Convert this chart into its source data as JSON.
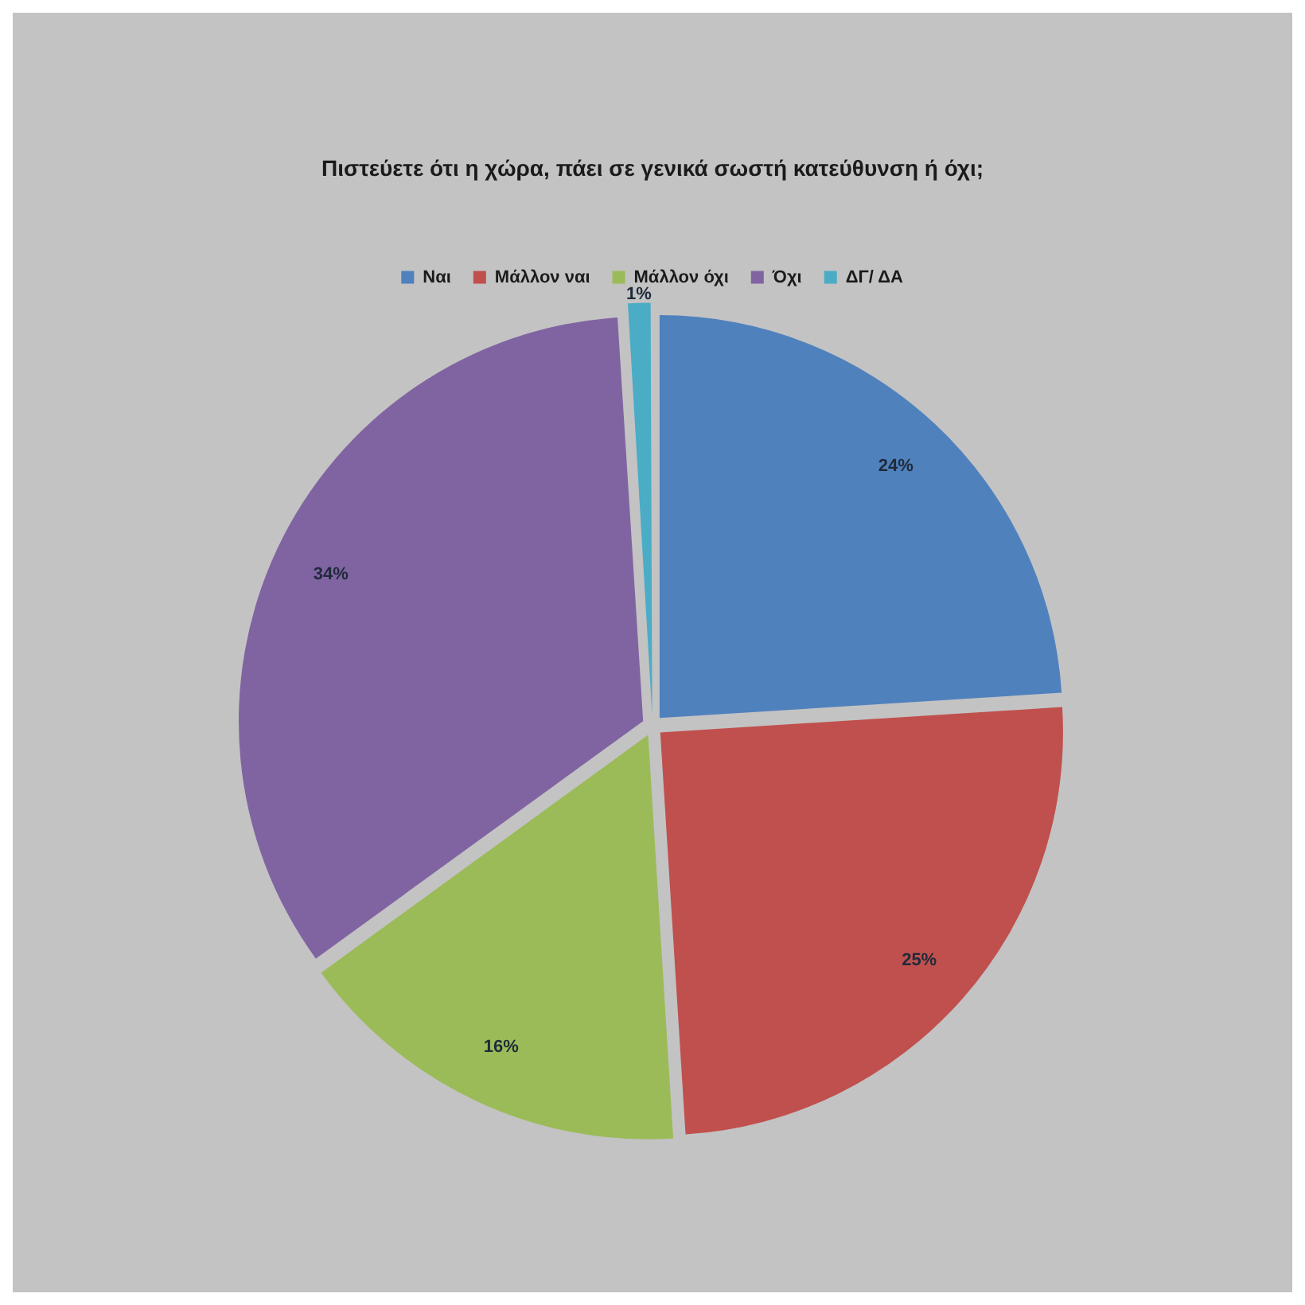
{
  "chart_data": {
    "type": "pie",
    "title": "Πιστεύετε ότι η χώρα, πάει σε γενικά σωστή κατεύθυνση ή όχι;",
    "categories": [
      "Ναι",
      "Μάλλον ναι",
      "Μάλλον όχι",
      "Όχι",
      "ΔΓ/ ΔΑ"
    ],
    "values": [
      24,
      25,
      16,
      34,
      1
    ],
    "colors": [
      "#4f81bd",
      "#c0504d",
      "#9bbb59",
      "#8064a2",
      "#4bacc6"
    ],
    "value_labels": [
      "24%",
      "25%",
      "16%",
      "34%",
      "1%"
    ],
    "legend": "top"
  }
}
